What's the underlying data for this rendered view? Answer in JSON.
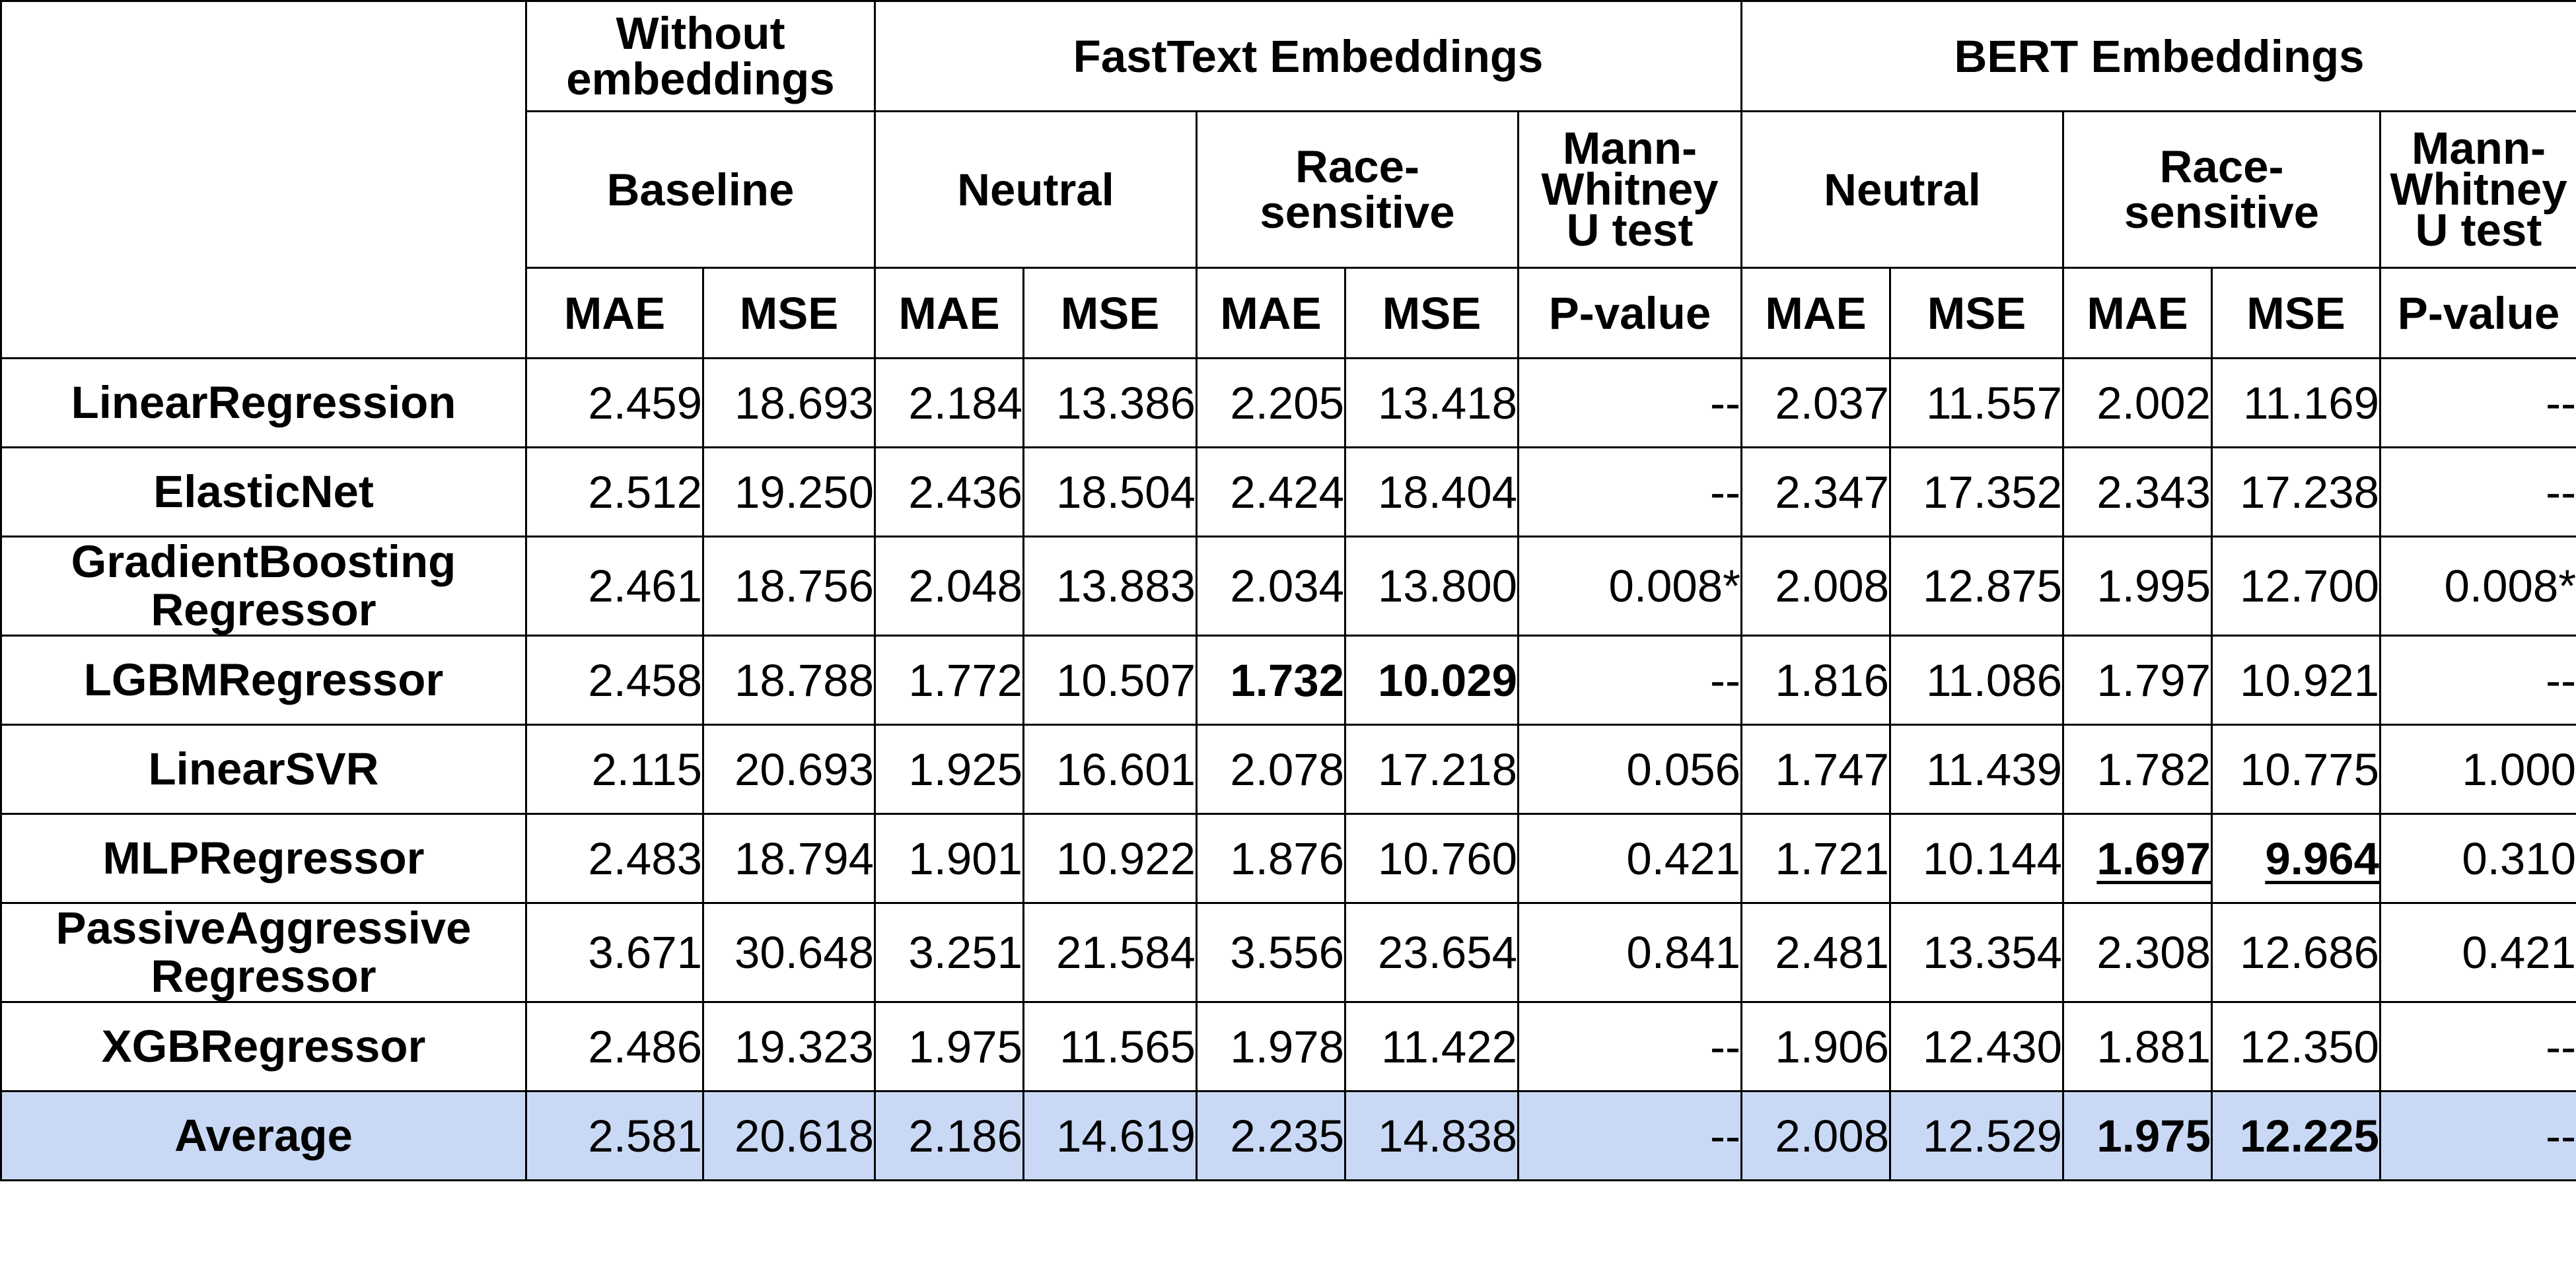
{
  "header": {
    "groups": {
      "without": "Without embeddings",
      "fasttext": "FastText Embeddings",
      "bert": "BERT Embeddings"
    },
    "subgroups": {
      "baseline": "Baseline",
      "ft_neutral": "Neutral",
      "ft_race": "Race-sensitive",
      "ft_mw": "Mann-Whitney U test",
      "bert_neutral": "Neutral",
      "bert_race": "Race-sensitive",
      "bert_mw": "Mann-Whitney U test"
    },
    "metrics": [
      "MAE",
      "MSE",
      "MAE",
      "MSE",
      "MAE",
      "MSE",
      "P-value",
      "MAE",
      "MSE",
      "MAE",
      "MSE",
      "P-value"
    ]
  },
  "rows": [
    {
      "model": "LinearRegression",
      "values": [
        "2.459",
        "18.693",
        "2.184",
        "13.386",
        "2.205",
        "13.418",
        "--",
        "2.037",
        "11.557",
        "2.002",
        "11.169",
        "--"
      ]
    },
    {
      "model": "ElasticNet",
      "values": [
        "2.512",
        "19.250",
        "2.436",
        "18.504",
        "2.424",
        "18.404",
        "--",
        "2.347",
        "17.352",
        "2.343",
        "17.238",
        "--"
      ]
    },
    {
      "model": "GradientBoosting Regressor",
      "values": [
        "2.461",
        "18.756",
        "2.048",
        "13.883",
        "2.034",
        "13.800",
        "0.008*",
        "2.008",
        "12.875",
        "1.995",
        "12.700",
        "0.008*"
      ]
    },
    {
      "model": "LGBMRegressor",
      "values": [
        "2.458",
        "18.788",
        "1.772",
        "10.507",
        "1.732",
        "10.029",
        "--",
        "1.816",
        "11.086",
        "1.797",
        "10.921",
        "--"
      ]
    },
    {
      "model": "LinearSVR",
      "values": [
        "2.115",
        "20.693",
        "1.925",
        "16.601",
        "2.078",
        "17.218",
        "0.056",
        "1.747",
        "11.439",
        "1.782",
        "10.775",
        "1.000"
      ]
    },
    {
      "model": "MLPRegressor",
      "values": [
        "2.483",
        "18.794",
        "1.901",
        "10.922",
        "1.876",
        "10.760",
        "0.421",
        "1.721",
        "10.144",
        "1.697",
        "9.964",
        "0.310"
      ]
    },
    {
      "model": "PassiveAggressive Regressor",
      "values": [
        "3.671",
        "30.648",
        "3.251",
        "21.584",
        "3.556",
        "23.654",
        "0.841",
        "2.481",
        "13.354",
        "2.308",
        "12.686",
        "0.421"
      ]
    },
    {
      "model": "XGBRegressor",
      "values": [
        "2.486",
        "19.323",
        "1.975",
        "11.565",
        "1.978",
        "11.422",
        "--",
        "1.906",
        "12.430",
        "1.881",
        "12.350",
        "--"
      ]
    }
  ],
  "average": {
    "model": "Average",
    "values": [
      "2.581",
      "20.618",
      "2.186",
      "14.619",
      "2.235",
      "14.838",
      "--",
      "2.008",
      "12.529",
      "1.975",
      "12.225",
      "--"
    ]
  },
  "colors": {
    "average_row_bg": "#c9d9f5",
    "border": "#000000"
  }
}
